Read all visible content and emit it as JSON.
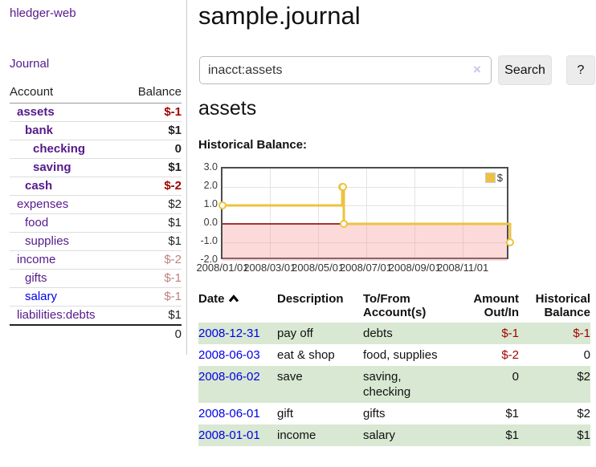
{
  "app": {
    "title": "hledger-web"
  },
  "sidebar": {
    "journal_link": "Journal",
    "headers": {
      "account": "Account",
      "balance": "Balance"
    },
    "accounts": [
      {
        "name": "assets",
        "balance": "$-1"
      },
      {
        "name": "bank",
        "balance": "$1"
      },
      {
        "name": "checking",
        "balance": "0"
      },
      {
        "name": "saving",
        "balance": "$1"
      },
      {
        "name": "cash",
        "balance": "$-2"
      },
      {
        "name": "expenses",
        "balance": "$2"
      },
      {
        "name": "food",
        "balance": "$1"
      },
      {
        "name": "supplies",
        "balance": "$1"
      },
      {
        "name": "income",
        "balance": "$-2"
      },
      {
        "name": "gifts",
        "balance": "$-1"
      },
      {
        "name": "salary",
        "balance": "$-1"
      },
      {
        "name": "liabilities:debts",
        "balance": "$1"
      }
    ],
    "total": "0"
  },
  "main": {
    "title": "sample.journal",
    "search": {
      "value": "inacct:assets",
      "clear_icon": "×",
      "button": "Search",
      "help_button": "?"
    },
    "heading": "assets",
    "chart_label": "Historical Balance:"
  },
  "chart_data": {
    "type": "line",
    "step": true,
    "title": "Historical Balance",
    "series": [
      {
        "name": "$",
        "points": [
          {
            "date": "2008-01-01",
            "value": 1
          },
          {
            "date": "2008-06-01",
            "value": 2
          },
          {
            "date": "2008-06-02",
            "value": 2
          },
          {
            "date": "2008-06-03",
            "value": 0
          },
          {
            "date": "2008-12-31",
            "value": -1
          }
        ]
      }
    ],
    "x_range": [
      "2008-01-01",
      "2008-12-31"
    ],
    "ylim": [
      -2,
      3
    ],
    "y_ticks": [
      "3.0",
      "2.0",
      "1.0",
      "0.0",
      "-1.0",
      "-2.0"
    ],
    "x_ticks": [
      "2008/01/01",
      "2008/03/01",
      "2008/05/01",
      "2008/07/01",
      "2008/09/01",
      "2008/11/01"
    ],
    "legend": {
      "label": "$",
      "color": "#edc240",
      "position": "top-right"
    },
    "line_color": "#edc240",
    "zero_line_color": "#a33333",
    "negative_region_fill": "#fadcdc",
    "grid": true
  },
  "table": {
    "headers": {
      "date": "Date",
      "description": "Description",
      "accounts": "To/From Account(s)",
      "amount": "Amount Out/In",
      "balance": "Historical Balance"
    },
    "rows": [
      {
        "date": "2008-12-31",
        "description": "pay off",
        "accounts": "debts",
        "amount": "$-1",
        "balance": "$-1"
      },
      {
        "date": "2008-06-03",
        "description": "eat & shop",
        "accounts": "food, supplies",
        "amount": "$-2",
        "balance": "0"
      },
      {
        "date": "2008-06-02",
        "description": "save",
        "accounts": "saving, checking",
        "amount": "0",
        "balance": "$2"
      },
      {
        "date": "2008-06-01",
        "description": "gift",
        "accounts": "gifts",
        "amount": "$1",
        "balance": "$2"
      },
      {
        "date": "2008-01-01",
        "description": "income",
        "accounts": "salary",
        "amount": "$1",
        "balance": "$1"
      }
    ]
  }
}
